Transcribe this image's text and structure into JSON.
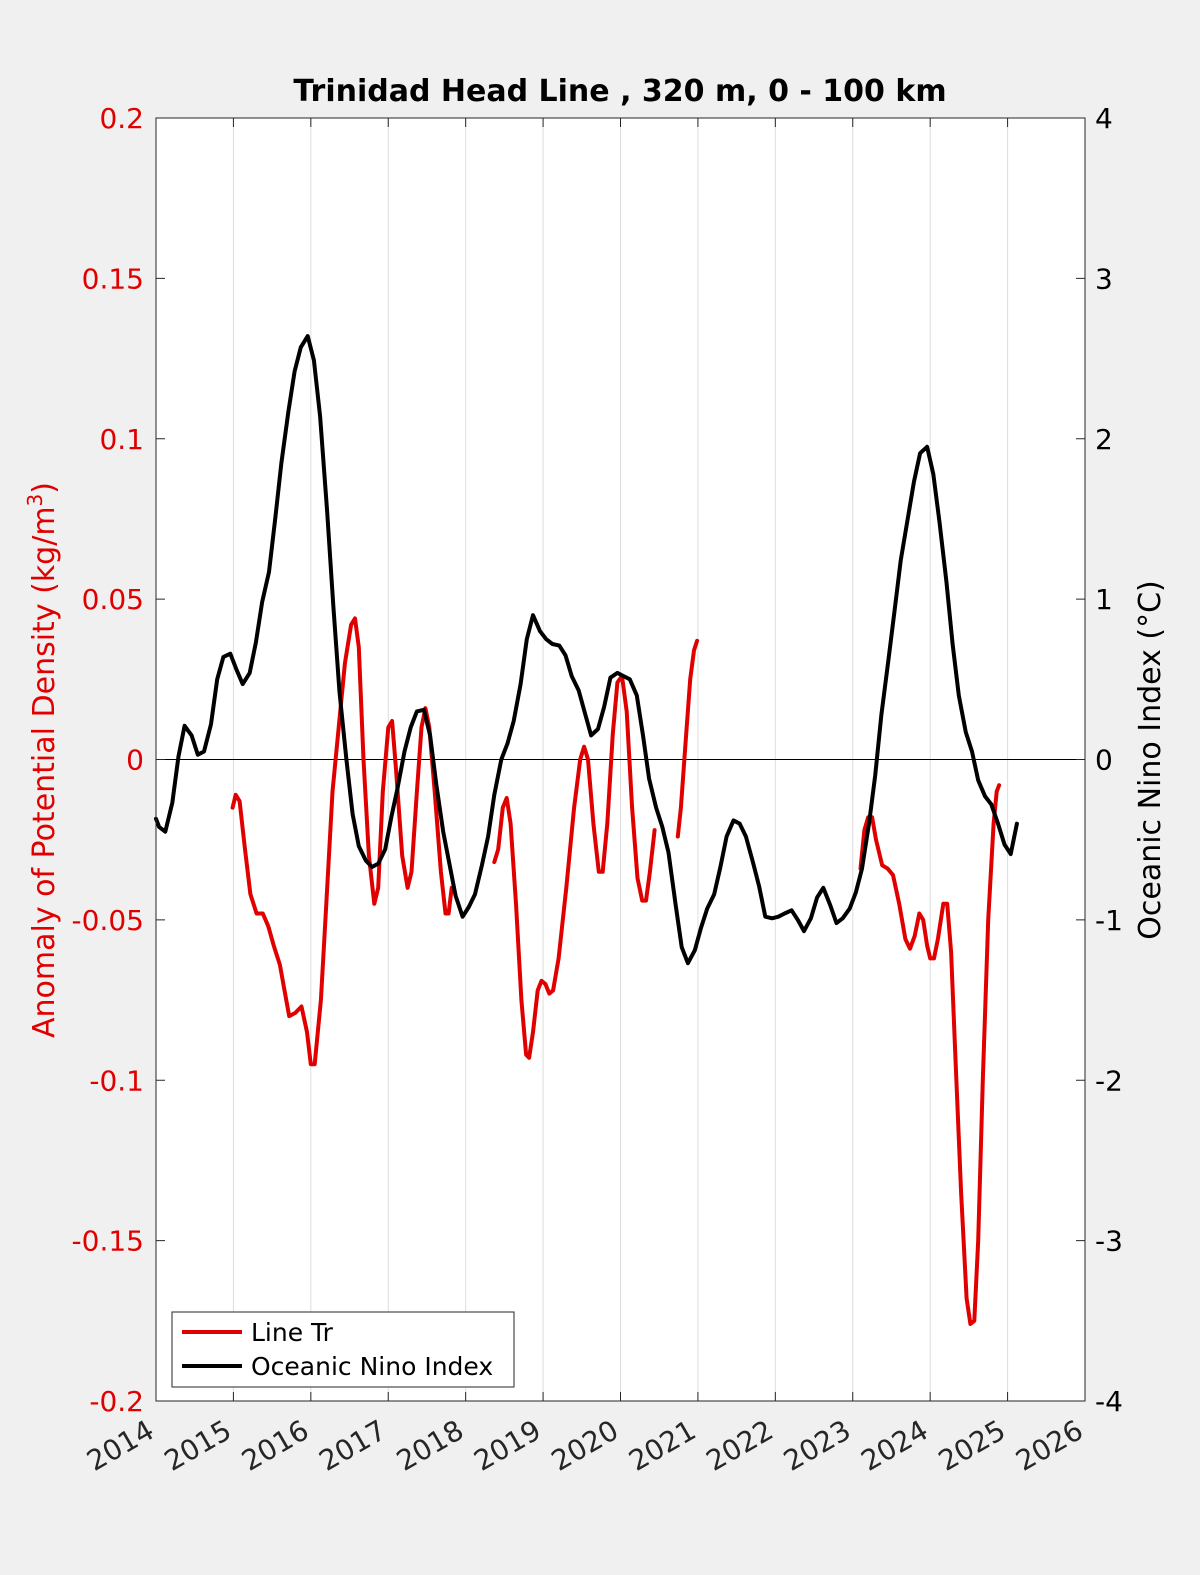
{
  "chart_data": {
    "type": "line",
    "title": "Trinidad Head Line , 320 m, 0 - 100 km",
    "ylabel_left": "Anomaly of Potential Density (kg/m",
    "ylabel_left_sup": "3",
    "ylabel_left_close": ")",
    "ylabel_right": "Oceanic Nino Index (°C)",
    "xlim": [
      2014,
      2026
    ],
    "ylim_left": [
      -0.2,
      0.2
    ],
    "ylim_right": [
      -4,
      4
    ],
    "x_ticks": [
      "2014",
      "2015",
      "2016",
      "2017",
      "2018",
      "2019",
      "2020",
      "2021",
      "2022",
      "2023",
      "2024",
      "2025",
      "2026"
    ],
    "y_left_ticks": [
      "0.2",
      "0.15",
      "0.1",
      "0.05",
      "0",
      "-0.05",
      "-0.1",
      "-0.15",
      "-0.2"
    ],
    "y_right_ticks": [
      "4",
      "3",
      "2",
      "1",
      "0",
      "-1",
      "-2",
      "-3",
      "-4"
    ],
    "grid": "vertical",
    "legend_position": "bottom-left",
    "colors": {
      "density": "#e00000",
      "oni": "#000000",
      "left_axis": "#e00000",
      "right_axis": "#000000"
    },
    "series": [
      {
        "name": "Line Tr",
        "axis": "left",
        "segments": [
          [
            [
              2014.99,
              -0.015
            ],
            [
              2015.03,
              -0.011
            ],
            [
              2015.08,
              -0.013
            ],
            [
              2015.15,
              -0.028
            ],
            [
              2015.22,
              -0.042
            ],
            [
              2015.3,
              -0.048
            ],
            [
              2015.38,
              -0.048
            ],
            [
              2015.45,
              -0.052
            ],
            [
              2015.52,
              -0.058
            ],
            [
              2015.6,
              -0.064
            ],
            [
              2015.66,
              -0.072
            ],
            [
              2015.72,
              -0.08
            ],
            [
              2015.8,
              -0.079
            ],
            [
              2015.88,
              -0.077
            ],
            [
              2015.95,
              -0.085
            ],
            [
              2016.0,
              -0.095
            ],
            [
              2016.05,
              -0.095
            ],
            [
              2016.13,
              -0.075
            ],
            [
              2016.2,
              -0.045
            ],
            [
              2016.28,
              -0.01
            ],
            [
              2016.36,
              0.01
            ],
            [
              2016.44,
              0.03
            ],
            [
              2016.52,
              0.042
            ],
            [
              2016.57,
              0.044
            ],
            [
              2016.62,
              0.035
            ],
            [
              2016.68,
              0.0
            ],
            [
              2016.75,
              -0.03
            ],
            [
              2016.82,
              -0.045
            ],
            [
              2016.87,
              -0.04
            ],
            [
              2016.93,
              -0.01
            ],
            [
              2017.0,
              0.01
            ],
            [
              2017.05,
              0.012
            ],
            [
              2017.1,
              -0.003
            ],
            [
              2017.18,
              -0.03
            ],
            [
              2017.25,
              -0.04
            ],
            [
              2017.3,
              -0.035
            ],
            [
              2017.37,
              -0.01
            ],
            [
              2017.43,
              0.01
            ],
            [
              2017.48,
              0.016
            ],
            [
              2017.53,
              0.01
            ],
            [
              2017.6,
              -0.01
            ],
            [
              2017.68,
              -0.035
            ],
            [
              2017.74,
              -0.048
            ],
            [
              2017.78,
              -0.048
            ],
            [
              2017.82,
              -0.04
            ]
          ],
          [
            [
              2018.37,
              -0.032
            ],
            [
              2018.42,
              -0.028
            ],
            [
              2018.48,
              -0.015
            ],
            [
              2018.53,
              -0.012
            ],
            [
              2018.58,
              -0.02
            ],
            [
              2018.65,
              -0.045
            ],
            [
              2018.72,
              -0.075
            ],
            [
              2018.78,
              -0.092
            ],
            [
              2018.82,
              -0.093
            ],
            [
              2018.87,
              -0.085
            ],
            [
              2018.93,
              -0.072
            ],
            [
              2018.98,
              -0.069
            ],
            [
              2019.03,
              -0.07
            ],
            [
              2019.08,
              -0.073
            ],
            [
              2019.13,
              -0.072
            ],
            [
              2019.2,
              -0.062
            ],
            [
              2019.3,
              -0.04
            ],
            [
              2019.4,
              -0.015
            ],
            [
              2019.48,
              0.0
            ],
            [
              2019.53,
              0.004
            ],
            [
              2019.58,
              0.0
            ],
            [
              2019.65,
              -0.02
            ],
            [
              2019.72,
              -0.035
            ],
            [
              2019.77,
              -0.035
            ],
            [
              2019.83,
              -0.02
            ],
            [
              2019.9,
              0.008
            ],
            [
              2019.96,
              0.024
            ],
            [
              2020.02,
              0.026
            ],
            [
              2020.08,
              0.015
            ],
            [
              2020.15,
              -0.015
            ],
            [
              2020.22,
              -0.037
            ],
            [
              2020.28,
              -0.044
            ],
            [
              2020.33,
              -0.044
            ],
            [
              2020.38,
              -0.035
            ],
            [
              2020.44,
              -0.022
            ]
          ],
          [
            [
              2020.74,
              -0.024
            ],
            [
              2020.78,
              -0.015
            ],
            [
              2020.84,
              0.005
            ],
            [
              2020.9,
              0.025
            ],
            [
              2020.95,
              0.034
            ],
            [
              2020.99,
              0.037
            ]
          ],
          [
            [
              2023.1,
              -0.034
            ],
            [
              2023.15,
              -0.022
            ],
            [
              2023.2,
              -0.018
            ],
            [
              2023.25,
              -0.018
            ],
            [
              2023.3,
              -0.025
            ],
            [
              2023.38,
              -0.033
            ],
            [
              2023.45,
              -0.034
            ],
            [
              2023.52,
              -0.036
            ],
            [
              2023.6,
              -0.045
            ],
            [
              2023.68,
              -0.056
            ],
            [
              2023.74,
              -0.059
            ],
            [
              2023.8,
              -0.055
            ],
            [
              2023.86,
              -0.048
            ],
            [
              2023.91,
              -0.05
            ],
            [
              2023.96,
              -0.058
            ],
            [
              2024.0,
              -0.062
            ],
            [
              2024.05,
              -0.062
            ],
            [
              2024.1,
              -0.056
            ],
            [
              2024.17,
              -0.045
            ],
            [
              2024.22,
              -0.045
            ],
            [
              2024.27,
              -0.06
            ],
            [
              2024.33,
              -0.095
            ],
            [
              2024.4,
              -0.135
            ],
            [
              2024.47,
              -0.168
            ],
            [
              2024.52,
              -0.176
            ],
            [
              2024.57,
              -0.175
            ],
            [
              2024.62,
              -0.15
            ],
            [
              2024.68,
              -0.1
            ],
            [
              2024.75,
              -0.05
            ],
            [
              2024.82,
              -0.02
            ],
            [
              2024.86,
              -0.01
            ],
            [
              2024.89,
              -0.008
            ]
          ]
        ]
      },
      {
        "name": "Oceanic Nino Index",
        "axis": "right",
        "points": [
          [
            2014.0,
            -0.37
          ],
          [
            2014.04,
            -0.42
          ],
          [
            2014.12,
            -0.45
          ],
          [
            2014.21,
            -0.27
          ],
          [
            2014.29,
            0.02
          ],
          [
            2014.37,
            0.21
          ],
          [
            2014.46,
            0.15
          ],
          [
            2014.54,
            0.03
          ],
          [
            2014.62,
            0.05
          ],
          [
            2014.71,
            0.22
          ],
          [
            2014.79,
            0.5
          ],
          [
            2014.87,
            0.64
          ],
          [
            2014.96,
            0.66
          ],
          [
            2015.04,
            0.56
          ],
          [
            2015.12,
            0.47
          ],
          [
            2015.21,
            0.54
          ],
          [
            2015.29,
            0.73
          ],
          [
            2015.37,
            0.98
          ],
          [
            2015.46,
            1.17
          ],
          [
            2015.54,
            1.5
          ],
          [
            2015.62,
            1.85
          ],
          [
            2015.71,
            2.17
          ],
          [
            2015.79,
            2.42
          ],
          [
            2015.87,
            2.57
          ],
          [
            2015.96,
            2.64
          ],
          [
            2016.04,
            2.49
          ],
          [
            2016.12,
            2.14
          ],
          [
            2016.21,
            1.55
          ],
          [
            2016.29,
            0.96
          ],
          [
            2016.37,
            0.42
          ],
          [
            2016.46,
            0.0
          ],
          [
            2016.54,
            -0.34
          ],
          [
            2016.62,
            -0.54
          ],
          [
            2016.71,
            -0.63
          ],
          [
            2016.79,
            -0.67
          ],
          [
            2016.87,
            -0.65
          ],
          [
            2016.96,
            -0.56
          ],
          [
            2017.04,
            -0.36
          ],
          [
            2017.12,
            -0.18
          ],
          [
            2017.21,
            0.05
          ],
          [
            2017.29,
            0.2
          ],
          [
            2017.37,
            0.3
          ],
          [
            2017.46,
            0.31
          ],
          [
            2017.54,
            0.15
          ],
          [
            2017.62,
            -0.15
          ],
          [
            2017.71,
            -0.45
          ],
          [
            2017.79,
            -0.65
          ],
          [
            2017.87,
            -0.85
          ],
          [
            2017.96,
            -0.98
          ],
          [
            2018.04,
            -0.92
          ],
          [
            2018.12,
            -0.84
          ],
          [
            2018.21,
            -0.66
          ],
          [
            2018.29,
            -0.48
          ],
          [
            2018.37,
            -0.22
          ],
          [
            2018.46,
            0.0
          ],
          [
            2018.54,
            0.1
          ],
          [
            2018.62,
            0.24
          ],
          [
            2018.71,
            0.47
          ],
          [
            2018.79,
            0.75
          ],
          [
            2018.87,
            0.9
          ],
          [
            2018.96,
            0.8
          ],
          [
            2019.04,
            0.75
          ],
          [
            2019.12,
            0.72
          ],
          [
            2019.21,
            0.71
          ],
          [
            2019.29,
            0.65
          ],
          [
            2019.37,
            0.52
          ],
          [
            2019.46,
            0.43
          ],
          [
            2019.54,
            0.29
          ],
          [
            2019.62,
            0.15
          ],
          [
            2019.71,
            0.19
          ],
          [
            2019.79,
            0.33
          ],
          [
            2019.87,
            0.51
          ],
          [
            2019.96,
            0.54
          ],
          [
            2020.04,
            0.52
          ],
          [
            2020.12,
            0.5
          ],
          [
            2020.21,
            0.4
          ],
          [
            2020.29,
            0.15
          ],
          [
            2020.37,
            -0.12
          ],
          [
            2020.46,
            -0.3
          ],
          [
            2020.54,
            -0.42
          ],
          [
            2020.62,
            -0.58
          ],
          [
            2020.71,
            -0.9
          ],
          [
            2020.79,
            -1.17
          ],
          [
            2020.87,
            -1.27
          ],
          [
            2020.96,
            -1.19
          ],
          [
            2021.04,
            -1.05
          ],
          [
            2021.12,
            -0.93
          ],
          [
            2021.21,
            -0.84
          ],
          [
            2021.29,
            -0.67
          ],
          [
            2021.37,
            -0.48
          ],
          [
            2021.46,
            -0.38
          ],
          [
            2021.54,
            -0.4
          ],
          [
            2021.62,
            -0.48
          ],
          [
            2021.71,
            -0.64
          ],
          [
            2021.79,
            -0.79
          ],
          [
            2021.87,
            -0.98
          ],
          [
            2021.96,
            -0.99
          ],
          [
            2022.04,
            -0.98
          ],
          [
            2022.12,
            -0.96
          ],
          [
            2022.21,
            -0.94
          ],
          [
            2022.29,
            -1.0
          ],
          [
            2022.37,
            -1.07
          ],
          [
            2022.46,
            -0.99
          ],
          [
            2022.54,
            -0.86
          ],
          [
            2022.62,
            -0.8
          ],
          [
            2022.71,
            -0.91
          ],
          [
            2022.79,
            -1.02
          ],
          [
            2022.87,
            -0.99
          ],
          [
            2022.96,
            -0.93
          ],
          [
            2023.04,
            -0.83
          ],
          [
            2023.12,
            -0.68
          ],
          [
            2023.21,
            -0.4
          ],
          [
            2023.29,
            -0.1
          ],
          [
            2023.37,
            0.28
          ],
          [
            2023.46,
            0.62
          ],
          [
            2023.54,
            0.93
          ],
          [
            2023.62,
            1.24
          ],
          [
            2023.71,
            1.5
          ],
          [
            2023.79,
            1.73
          ],
          [
            2023.87,
            1.91
          ],
          [
            2023.96,
            1.95
          ],
          [
            2024.04,
            1.78
          ],
          [
            2024.12,
            1.48
          ],
          [
            2024.21,
            1.11
          ],
          [
            2024.29,
            0.72
          ],
          [
            2024.37,
            0.4
          ],
          [
            2024.46,
            0.17
          ],
          [
            2024.54,
            0.05
          ],
          [
            2024.62,
            -0.13
          ],
          [
            2024.71,
            -0.23
          ],
          [
            2024.79,
            -0.28
          ],
          [
            2024.87,
            -0.39
          ],
          [
            2024.96,
            -0.53
          ],
          [
            2025.04,
            -0.59
          ],
          [
            2025.12,
            -0.4
          ]
        ]
      }
    ]
  }
}
